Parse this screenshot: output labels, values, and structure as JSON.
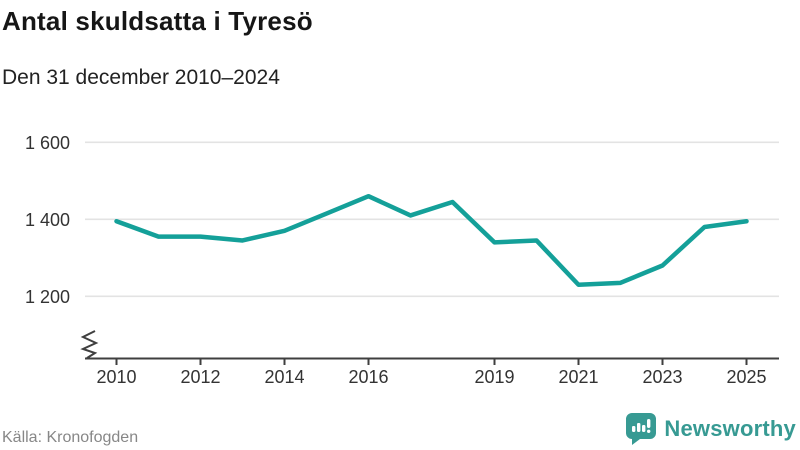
{
  "header": {
    "title": "Antal skuldsatta i Tyresö",
    "subtitle": "Den 31 december 2010–2024"
  },
  "footer": {
    "source": "Källa: Kronofogden",
    "brand": "Newsworthy"
  },
  "colors": {
    "line": "#14a099",
    "grid": "#e3e3e3",
    "axis": "#3f3f3f",
    "tick_label": "#333333",
    "brand_teal": "#379a93"
  },
  "chart_data": {
    "type": "line",
    "title": "Antal skuldsatta i Tyresö",
    "subtitle": "Den 31 december 2010–2024",
    "source": "Källa: Kronofogden",
    "series_name": "Antal skuldsatta",
    "x": [
      2010,
      2011,
      2012,
      2013,
      2014,
      2015,
      2016,
      2017,
      2018,
      2019,
      2020,
      2021,
      2022,
      2023,
      2024,
      2025
    ],
    "values": [
      1395,
      1355,
      1355,
      1345,
      1370,
      1415,
      1460,
      1410,
      1445,
      1340,
      1345,
      1230,
      1235,
      1280,
      1380,
      1395
    ],
    "yticks": [
      1200,
      1400,
      1600
    ],
    "ytick_labels": [
      "1 200",
      "1 400",
      "1 600"
    ],
    "xticks": [
      2010,
      2012,
      2014,
      2016,
      2019,
      2021,
      2023,
      2025
    ],
    "ylim": [
      1150,
      1650
    ],
    "xlim": [
      2010,
      2025
    ],
    "grid": "horizontal",
    "axis_break": true,
    "legend": "none"
  }
}
